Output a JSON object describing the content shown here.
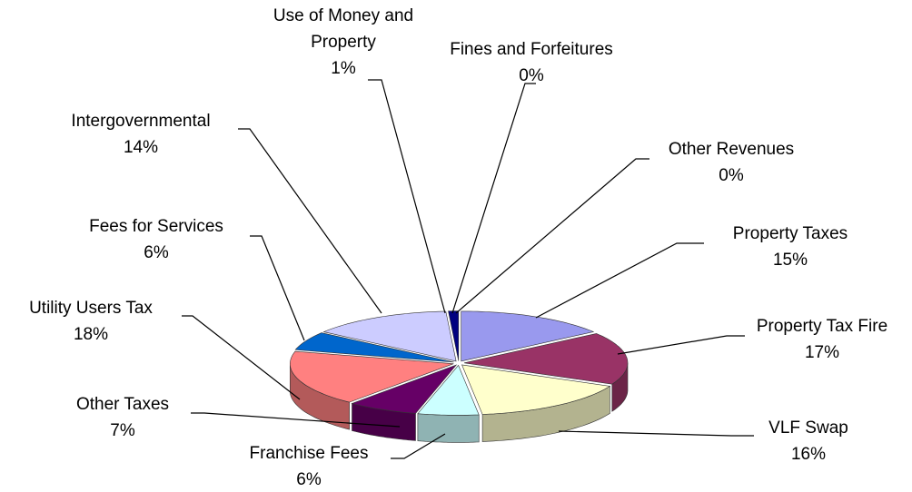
{
  "chart_data": {
    "type": "pie3d",
    "categories": [
      "Property Taxes",
      "Property Tax Fire",
      "VLF Swap",
      "Franchise Fees",
      "Other Taxes",
      "Utility Users Tax",
      "Fees for Services",
      "Intergovernmental",
      "Use of Money and Property",
      "Fines and Forfeitures",
      "Other Revenues"
    ],
    "values": [
      15,
      17,
      16,
      6,
      7,
      18,
      6,
      14,
      1,
      0,
      0
    ],
    "value_labels": [
      "15%",
      "17%",
      "16%",
      "6%",
      "7%",
      "18%",
      "6%",
      "14%",
      "1%",
      "0%",
      "0%"
    ],
    "colors": [
      "#9999ee",
      "#993366",
      "#ffffcc",
      "#ccffff",
      "#660066",
      "#ff8080",
      "#0066cc",
      "#ccccff",
      "#000080",
      "#ff00ff",
      "#ffffff"
    ]
  }
}
